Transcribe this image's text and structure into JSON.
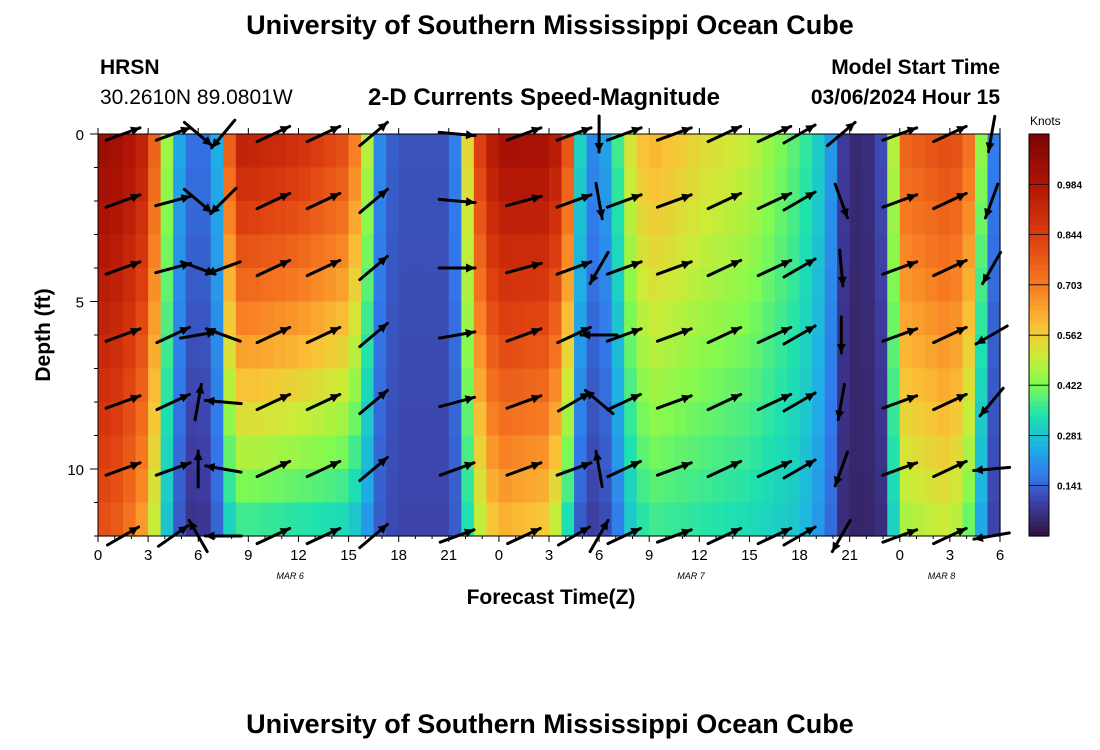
{
  "page": {
    "title": "University of Southern Mississippi Ocean Cube",
    "footer_title": "University of Southern Mississippi Ocean Cube"
  },
  "header": {
    "station": "HRSN",
    "coords": "30.2610N  89.0801W",
    "subtitle": "2-D Currents Speed-Magnitude",
    "model_label": "Model Start Time",
    "model_time": "03/06/2024 Hour 15"
  },
  "chart_data": {
    "type": "heatmap",
    "title": "2-D Currents Speed-Magnitude",
    "xlabel": "Forecast Time(Z)",
    "ylabel": "Depth (ft)",
    "x_hours": [
      0,
      3,
      6,
      9,
      12,
      15,
      18,
      21,
      24,
      27,
      30,
      33,
      36,
      39,
      42,
      45,
      48,
      51,
      54
    ],
    "x_tick_labels": [
      "0",
      "3",
      "6",
      "9",
      "12",
      "15",
      "18",
      "21",
      "0",
      "3",
      "6",
      "9",
      "12",
      "15",
      "18",
      "21",
      "0",
      "3",
      "6"
    ],
    "date_labels": [
      {
        "label": "MAR 6",
        "hour": 11.5
      },
      {
        "label": "MAR 7",
        "hour": 35.5
      },
      {
        "label": "MAR 8",
        "hour": 50.5
      }
    ],
    "xlim": [
      0,
      54
    ],
    "ylim": [
      0,
      12
    ],
    "y_ticks": [
      0,
      5,
      10
    ],
    "y_tick_labels": [
      "0",
      "5",
      "10"
    ],
    "colorbar": {
      "unit": "Knots",
      "range": [
        0,
        1.125
      ],
      "tick_values": [
        0.141,
        0.281,
        0.422,
        0.562,
        0.703,
        0.844,
        0.984
      ],
      "tick_labels": [
        "0.141",
        "0.281",
        "0.422",
        "0.562",
        "0.703",
        "0.844",
        "0.984"
      ]
    },
    "speed_profile_hours": [
      0,
      1.5,
      3,
      4,
      4.5,
      5,
      6,
      7,
      7.5,
      8,
      8.5,
      9,
      12,
      15,
      16,
      16.5,
      17,
      18,
      21,
      21.5,
      22,
      23,
      24,
      27,
      28,
      28.5,
      29,
      30,
      31,
      32,
      33,
      36,
      39,
      42,
      43,
      44,
      44.5,
      45,
      46,
      47,
      47.5,
      48,
      51,
      52,
      53,
      53.5,
      54
    ],
    "speed_profile_top": [
      1.05,
      1.02,
      0.92,
      0.5,
      0.35,
      0.2,
      0.14,
      0.2,
      0.4,
      0.9,
      0.95,
      0.95,
      0.9,
      0.8,
      0.55,
      0.3,
      0.16,
      0.12,
      0.12,
      0.2,
      0.5,
      0.9,
      1.02,
      1.02,
      0.9,
      0.5,
      0.25,
      0.16,
      0.35,
      0.55,
      0.62,
      0.55,
      0.5,
      0.38,
      0.32,
      0.2,
      0.1,
      0.05,
      0.05,
      0.12,
      0.4,
      0.75,
      0.82,
      0.78,
      0.4,
      0.2,
      0.12
    ],
    "speed_profile_bottom": [
      0.8,
      0.75,
      0.6,
      0.3,
      0.2,
      0.1,
      0.05,
      0.12,
      0.2,
      0.32,
      0.34,
      0.34,
      0.32,
      0.3,
      0.22,
      0.16,
      0.12,
      0.1,
      0.1,
      0.14,
      0.3,
      0.5,
      0.6,
      0.55,
      0.35,
      0.2,
      0.1,
      0.08,
      0.15,
      0.3,
      0.36,
      0.34,
      0.32,
      0.28,
      0.22,
      0.14,
      0.06,
      0.04,
      0.04,
      0.06,
      0.25,
      0.45,
      0.5,
      0.42,
      0.2,
      0.1,
      0.08
    ],
    "arrow_depths": [
      0,
      2,
      4,
      6,
      8,
      10,
      12
    ],
    "arrows": [
      {
        "hour": 1.5,
        "angles": [
          20,
          20,
          20,
          20,
          20,
          20,
          30
        ]
      },
      {
        "hour": 4.5,
        "angles": [
          20,
          15,
          15,
          25,
          25,
          20,
          35
        ]
      },
      {
        "hour": 6,
        "angles": [
          -40,
          -40,
          -20,
          10,
          80,
          90,
          120
        ]
      },
      {
        "hour": 7.5,
        "angles": [
          -130,
          -135,
          -160,
          160,
          175,
          170,
          180
        ]
      },
      {
        "hour": 10.5,
        "angles": [
          25,
          25,
          25,
          25,
          25,
          25,
          25
        ]
      },
      {
        "hour": 13.5,
        "angles": [
          25,
          25,
          25,
          25,
          25,
          25,
          25
        ]
      },
      {
        "hour": 16.5,
        "angles": [
          40,
          40,
          40,
          40,
          40,
          40,
          40
        ]
      },
      {
        "hour": 21.5,
        "angles": [
          -5,
          -5,
          0,
          10,
          15,
          20,
          20
        ]
      },
      {
        "hour": 25.5,
        "angles": [
          20,
          15,
          15,
          20,
          20,
          20,
          25
        ]
      },
      {
        "hour": 28.5,
        "angles": [
          20,
          20,
          20,
          25,
          30,
          20,
          30
        ]
      },
      {
        "hour": 30,
        "angles": [
          -90,
          -80,
          -120,
          180,
          140,
          100,
          60
        ]
      },
      {
        "hour": 31.5,
        "angles": [
          20,
          20,
          20,
          20,
          25,
          25,
          25
        ]
      },
      {
        "hour": 34.5,
        "angles": [
          20,
          20,
          20,
          20,
          20,
          20,
          20
        ]
      },
      {
        "hour": 37.5,
        "angles": [
          25,
          25,
          25,
          25,
          25,
          25,
          25
        ]
      },
      {
        "hour": 40.5,
        "angles": [
          25,
          25,
          25,
          25,
          25,
          25,
          25
        ]
      },
      {
        "hour": 42,
        "angles": [
          30,
          30,
          30,
          30,
          30,
          30,
          30
        ]
      },
      {
        "hour": 44.5,
        "angles": [
          40,
          -70,
          -85,
          -90,
          -100,
          -110,
          -120
        ]
      },
      {
        "hour": 48,
        "angles": [
          20,
          20,
          20,
          20,
          20,
          20,
          20
        ]
      },
      {
        "hour": 51,
        "angles": [
          25,
          25,
          25,
          25,
          25,
          25,
          25
        ]
      },
      {
        "hour": 53.5,
        "angles": [
          -100,
          -110,
          -120,
          -150,
          -130,
          -175,
          -170
        ]
      }
    ]
  }
}
